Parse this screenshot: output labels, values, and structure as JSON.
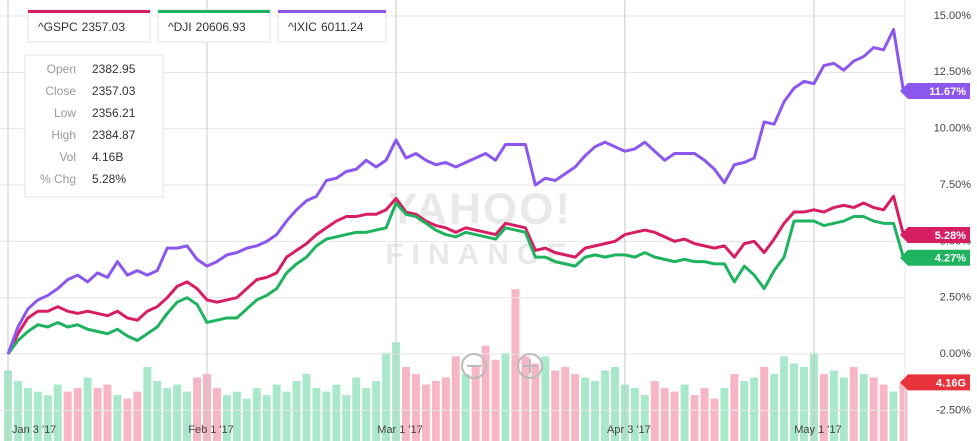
{
  "chart_data": {
    "type": "line",
    "watermark": [
      "YAHOO!",
      "FINANCE"
    ],
    "categories": [
      "Jan 3 '17",
      null,
      null,
      null,
      null,
      null,
      null,
      null,
      null,
      null,
      null,
      null,
      null,
      null,
      null,
      null,
      null,
      null,
      null,
      null,
      "Feb 1 '17",
      null,
      null,
      null,
      null,
      null,
      null,
      null,
      null,
      null,
      null,
      null,
      null,
      null,
      null,
      null,
      null,
      null,
      null,
      "Mar 1 '17",
      null,
      null,
      null,
      null,
      null,
      null,
      null,
      null,
      null,
      null,
      null,
      null,
      null,
      null,
      null,
      null,
      null,
      null,
      null,
      null,
      null,
      null,
      "Apr 3 '17",
      null,
      null,
      null,
      null,
      null,
      null,
      null,
      null,
      null,
      null,
      null,
      null,
      null,
      null,
      null,
      null,
      null,
      null,
      "May 1 '17",
      null,
      null,
      null,
      null,
      null,
      null,
      null,
      null,
      null
    ],
    "ylim": [
      -3.86,
      15.71
    ],
    "yticks": [
      {
        "value": 15,
        "label": "15.00%"
      },
      {
        "value": 12.5,
        "label": "12.50%"
      },
      {
        "value": 10,
        "label": "10.00%"
      },
      {
        "value": 7.5,
        "label": "7.50%"
      },
      {
        "value": 5,
        "label": "5.00%"
      },
      {
        "value": 2.5,
        "label": "2.50%"
      },
      {
        "value": 0,
        "label": "0.00%"
      },
      {
        "value": -2.5,
        "label": "-2.50%"
      }
    ],
    "grid": true,
    "series": [
      {
        "name": "^GSPC",
        "price": "2357.03",
        "color": "#d81e63",
        "last_label": "5.28%",
        "values": [
          0,
          0.9,
          1.6,
          1.9,
          1.9,
          2.1,
          1.9,
          1.8,
          1.9,
          1.8,
          1.7,
          1.9,
          1.6,
          1.5,
          1.9,
          2.1,
          2.5,
          3.0,
          3.2,
          2.9,
          2.4,
          2.3,
          2.4,
          2.5,
          2.9,
          3.3,
          3.4,
          3.6,
          4.3,
          4.6,
          4.9,
          5.3,
          5.6,
          5.9,
          6.1,
          6.1,
          6.2,
          6.2,
          6.4,
          6.9,
          6.3,
          6.2,
          5.9,
          5.7,
          5.6,
          5.4,
          5.6,
          5.5,
          5.4,
          5.3,
          5.8,
          5.7,
          5.6,
          4.6,
          4.7,
          4.5,
          4.4,
          4.3,
          4.7,
          4.8,
          4.9,
          5.0,
          5.3,
          5.4,
          5.5,
          5.4,
          5.2,
          5.0,
          5.1,
          4.9,
          4.8,
          4.7,
          4.8,
          4.3,
          4.9,
          5.0,
          4.5,
          5.1,
          5.8,
          6.3,
          6.3,
          6.4,
          6.3,
          6.5,
          6.6,
          6.5,
          6.7,
          6.5,
          6.4,
          7.0,
          5.28
        ]
      },
      {
        "name": "^DJI",
        "price": "20606.93",
        "color": "#1fb25f",
        "last_label": "4.27%",
        "values": [
          0,
          0.6,
          1.0,
          1.3,
          1.2,
          1.4,
          1.2,
          1.3,
          1.1,
          1.0,
          0.9,
          1.1,
          0.8,
          0.6,
          0.9,
          1.2,
          1.8,
          2.3,
          2.5,
          2.2,
          1.4,
          1.5,
          1.6,
          1.6,
          2.0,
          2.4,
          2.6,
          2.9,
          3.6,
          4.0,
          4.3,
          4.8,
          5.1,
          5.2,
          5.3,
          5.4,
          5.4,
          5.5,
          5.6,
          6.7,
          6.2,
          6.1,
          5.8,
          5.5,
          5.3,
          5.2,
          5.4,
          5.3,
          5.2,
          5.1,
          5.6,
          5.5,
          5.4,
          4.3,
          4.3,
          4.1,
          4.0,
          3.9,
          4.3,
          4.4,
          4.3,
          4.4,
          4.4,
          4.3,
          4.5,
          4.3,
          4.2,
          4.1,
          4.2,
          4.1,
          4.1,
          4.0,
          4.0,
          3.2,
          3.9,
          3.5,
          2.9,
          3.7,
          4.3,
          5.9,
          5.9,
          5.9,
          5.7,
          5.8,
          5.9,
          6.1,
          6.1,
          5.9,
          5.8,
          5.8,
          4.27
        ]
      },
      {
        "name": "^IXIC",
        "price": "6011.24",
        "color": "#8c57ee",
        "last_label": "11.67%",
        "values": [
          0,
          1.2,
          2.0,
          2.4,
          2.6,
          2.9,
          3.3,
          3.5,
          3.2,
          3.6,
          3.4,
          4.1,
          3.5,
          3.7,
          3.5,
          3.7,
          4.7,
          4.7,
          4.8,
          4.2,
          3.9,
          4.1,
          4.4,
          4.5,
          4.7,
          4.8,
          5.0,
          5.3,
          5.9,
          6.4,
          6.8,
          7.0,
          7.7,
          7.8,
          8.1,
          8.2,
          8.6,
          8.3,
          8.6,
          9.5,
          8.7,
          8.9,
          8.6,
          8.4,
          8.5,
          8.3,
          8.5,
          8.7,
          8.9,
          8.6,
          9.3,
          9.3,
          9.3,
          7.5,
          7.8,
          7.7,
          8.0,
          8.3,
          8.8,
          9.2,
          9.4,
          9.2,
          9.0,
          9.1,
          9.4,
          9.0,
          8.6,
          8.9,
          8.9,
          8.9,
          8.6,
          8.2,
          7.6,
          8.4,
          8.5,
          8.7,
          10.3,
          10.2,
          11.2,
          11.8,
          12.1,
          12.0,
          12.8,
          12.9,
          12.6,
          13.0,
          13.2,
          13.6,
          13.5,
          14.4,
          11.67
        ]
      }
    ],
    "volume": {
      "axis": "y2",
      "up_color": "#a9e8cb",
      "down_color": "#f6b6c5",
      "tag_color": "#e8323c",
      "last_label": "4.16G",
      "values": [
        4.5,
        4.2,
        4.0,
        3.9,
        3.8,
        4.1,
        3.9,
        4.0,
        4.3,
        4.0,
        4.1,
        3.8,
        3.7,
        3.9,
        4.6,
        4.2,
        4.0,
        4.1,
        3.9,
        4.3,
        4.4,
        4.0,
        3.8,
        3.9,
        3.7,
        4.0,
        3.8,
        4.1,
        3.9,
        4.2,
        4.4,
        4.0,
        3.9,
        4.1,
        3.8,
        4.3,
        4.0,
        4.2,
        5.0,
        5.3,
        4.6,
        4.4,
        4.1,
        4.2,
        4.3,
        4.9,
        4.4,
        4.6,
        5.2,
        4.8,
        5.0,
        6.8,
        4.9,
        4.7,
        4.9,
        4.5,
        4.6,
        4.4,
        4.3,
        4.2,
        4.5,
        4.6,
        4.1,
        4.0,
        3.8,
        4.2,
        4.0,
        3.9,
        4.1,
        3.8,
        4.0,
        3.7,
        4.0,
        4.4,
        4.2,
        4.3,
        4.6,
        4.4,
        4.9,
        4.7,
        4.6,
        5.0,
        4.4,
        4.5,
        4.3,
        4.6,
        4.4,
        4.3,
        4.1,
        3.9,
        4.16
      ]
    },
    "y2lim": [
      2.5,
      15
    ],
    "info": [
      [
        "Open",
        "2382.95"
      ],
      [
        "Close",
        "2357.03"
      ],
      [
        "Low",
        "2356.21"
      ],
      [
        "High",
        "2384.87"
      ],
      [
        "Vol",
        "4.16B"
      ],
      [
        "% Chg",
        "5.28%"
      ]
    ]
  }
}
